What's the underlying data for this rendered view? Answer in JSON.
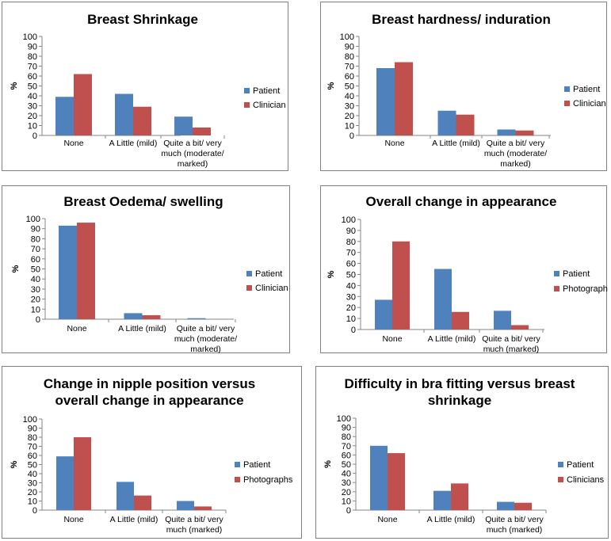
{
  "colors": {
    "series1": "#4f81bd",
    "series2": "#c0504d"
  },
  "chart_data": [
    {
      "type": "bar",
      "title": [
        "Breast Shrinkage"
      ],
      "ylabel": "%",
      "ylim": [
        0,
        100
      ],
      "yticks": [
        0,
        10,
        20,
        30,
        40,
        50,
        60,
        70,
        80,
        90,
        100
      ],
      "categories": [
        [
          "None"
        ],
        [
          "A Little (mild)"
        ],
        [
          "Quite a bit/ very",
          "much (moderate/",
          "marked)"
        ]
      ],
      "series": [
        {
          "name": "Patient",
          "values": [
            39,
            42,
            19
          ]
        },
        {
          "name": "Clinician",
          "values": [
            62,
            29,
            8
          ]
        }
      ]
    },
    {
      "type": "bar",
      "title": [
        "Breast hardness/ induration"
      ],
      "ylabel": "%",
      "ylim": [
        0,
        100
      ],
      "yticks": [
        0,
        10,
        20,
        30,
        40,
        50,
        60,
        70,
        80,
        90,
        100
      ],
      "categories": [
        [
          "None"
        ],
        [
          "A Little (mild)"
        ],
        [
          "Quite a bit/ very",
          "much (moderate/",
          "marked)"
        ]
      ],
      "series": [
        {
          "name": "Patient",
          "values": [
            68,
            25,
            6
          ]
        },
        {
          "name": "Clinician",
          "values": [
            74,
            21,
            5
          ]
        }
      ]
    },
    {
      "type": "bar",
      "title": [
        "Breast Oedema/ swelling"
      ],
      "ylabel": "%",
      "ylim": [
        0,
        100
      ],
      "yticks": [
        0,
        10,
        20,
        30,
        40,
        50,
        60,
        70,
        80,
        90,
        100
      ],
      "categories": [
        [
          "None"
        ],
        [
          "A Little (mild)"
        ],
        [
          "Quite a bit/ very",
          "much (moderate/",
          "marked)"
        ]
      ],
      "series": [
        {
          "name": "Patient",
          "values": [
            93,
            6,
            1
          ]
        },
        {
          "name": "Clinician",
          "values": [
            96,
            4,
            0
          ]
        }
      ]
    },
    {
      "type": "bar",
      "title": [
        "Overall change in appearance"
      ],
      "ylabel": "%",
      "ylim": [
        0,
        100
      ],
      "yticks": [
        0,
        10,
        20,
        30,
        40,
        50,
        60,
        70,
        80,
        90,
        100
      ],
      "categories": [
        [
          "None"
        ],
        [
          "A Little (mild)"
        ],
        [
          "Quite a bit/ very",
          "much (marked)"
        ]
      ],
      "series": [
        {
          "name": "Patient",
          "values": [
            27,
            55,
            17
          ]
        },
        {
          "name": "Photographs",
          "values": [
            80,
            16,
            4
          ]
        }
      ]
    },
    {
      "type": "bar",
      "title": [
        "Change in nipple position versus",
        "overall change in appearance"
      ],
      "ylabel": "%",
      "ylim": [
        0,
        100
      ],
      "yticks": [
        0,
        10,
        20,
        30,
        40,
        50,
        60,
        70,
        80,
        90,
        100
      ],
      "categories": [
        [
          "None"
        ],
        [
          "A Little (mild)"
        ],
        [
          "Quite a bit/ very",
          "much (marked)"
        ]
      ],
      "series": [
        {
          "name": "Patient",
          "values": [
            59,
            31,
            10
          ]
        },
        {
          "name": "Photographs",
          "values": [
            80,
            16,
            4
          ]
        }
      ]
    },
    {
      "type": "bar",
      "title": [
        "Difficulty in bra fitting versus breast",
        "shrinkage"
      ],
      "ylabel": "%",
      "ylim": [
        0,
        100
      ],
      "yticks": [
        0,
        10,
        20,
        30,
        40,
        50,
        60,
        70,
        80,
        90,
        100
      ],
      "categories": [
        [
          "None"
        ],
        [
          "A Little (mild)"
        ],
        [
          "Quite a bit/ very",
          "much (marked)"
        ]
      ],
      "series": [
        {
          "name": "Patient",
          "values": [
            70,
            21,
            9
          ]
        },
        {
          "name": "Clinicians",
          "values": [
            62,
            29,
            8
          ]
        }
      ]
    }
  ]
}
